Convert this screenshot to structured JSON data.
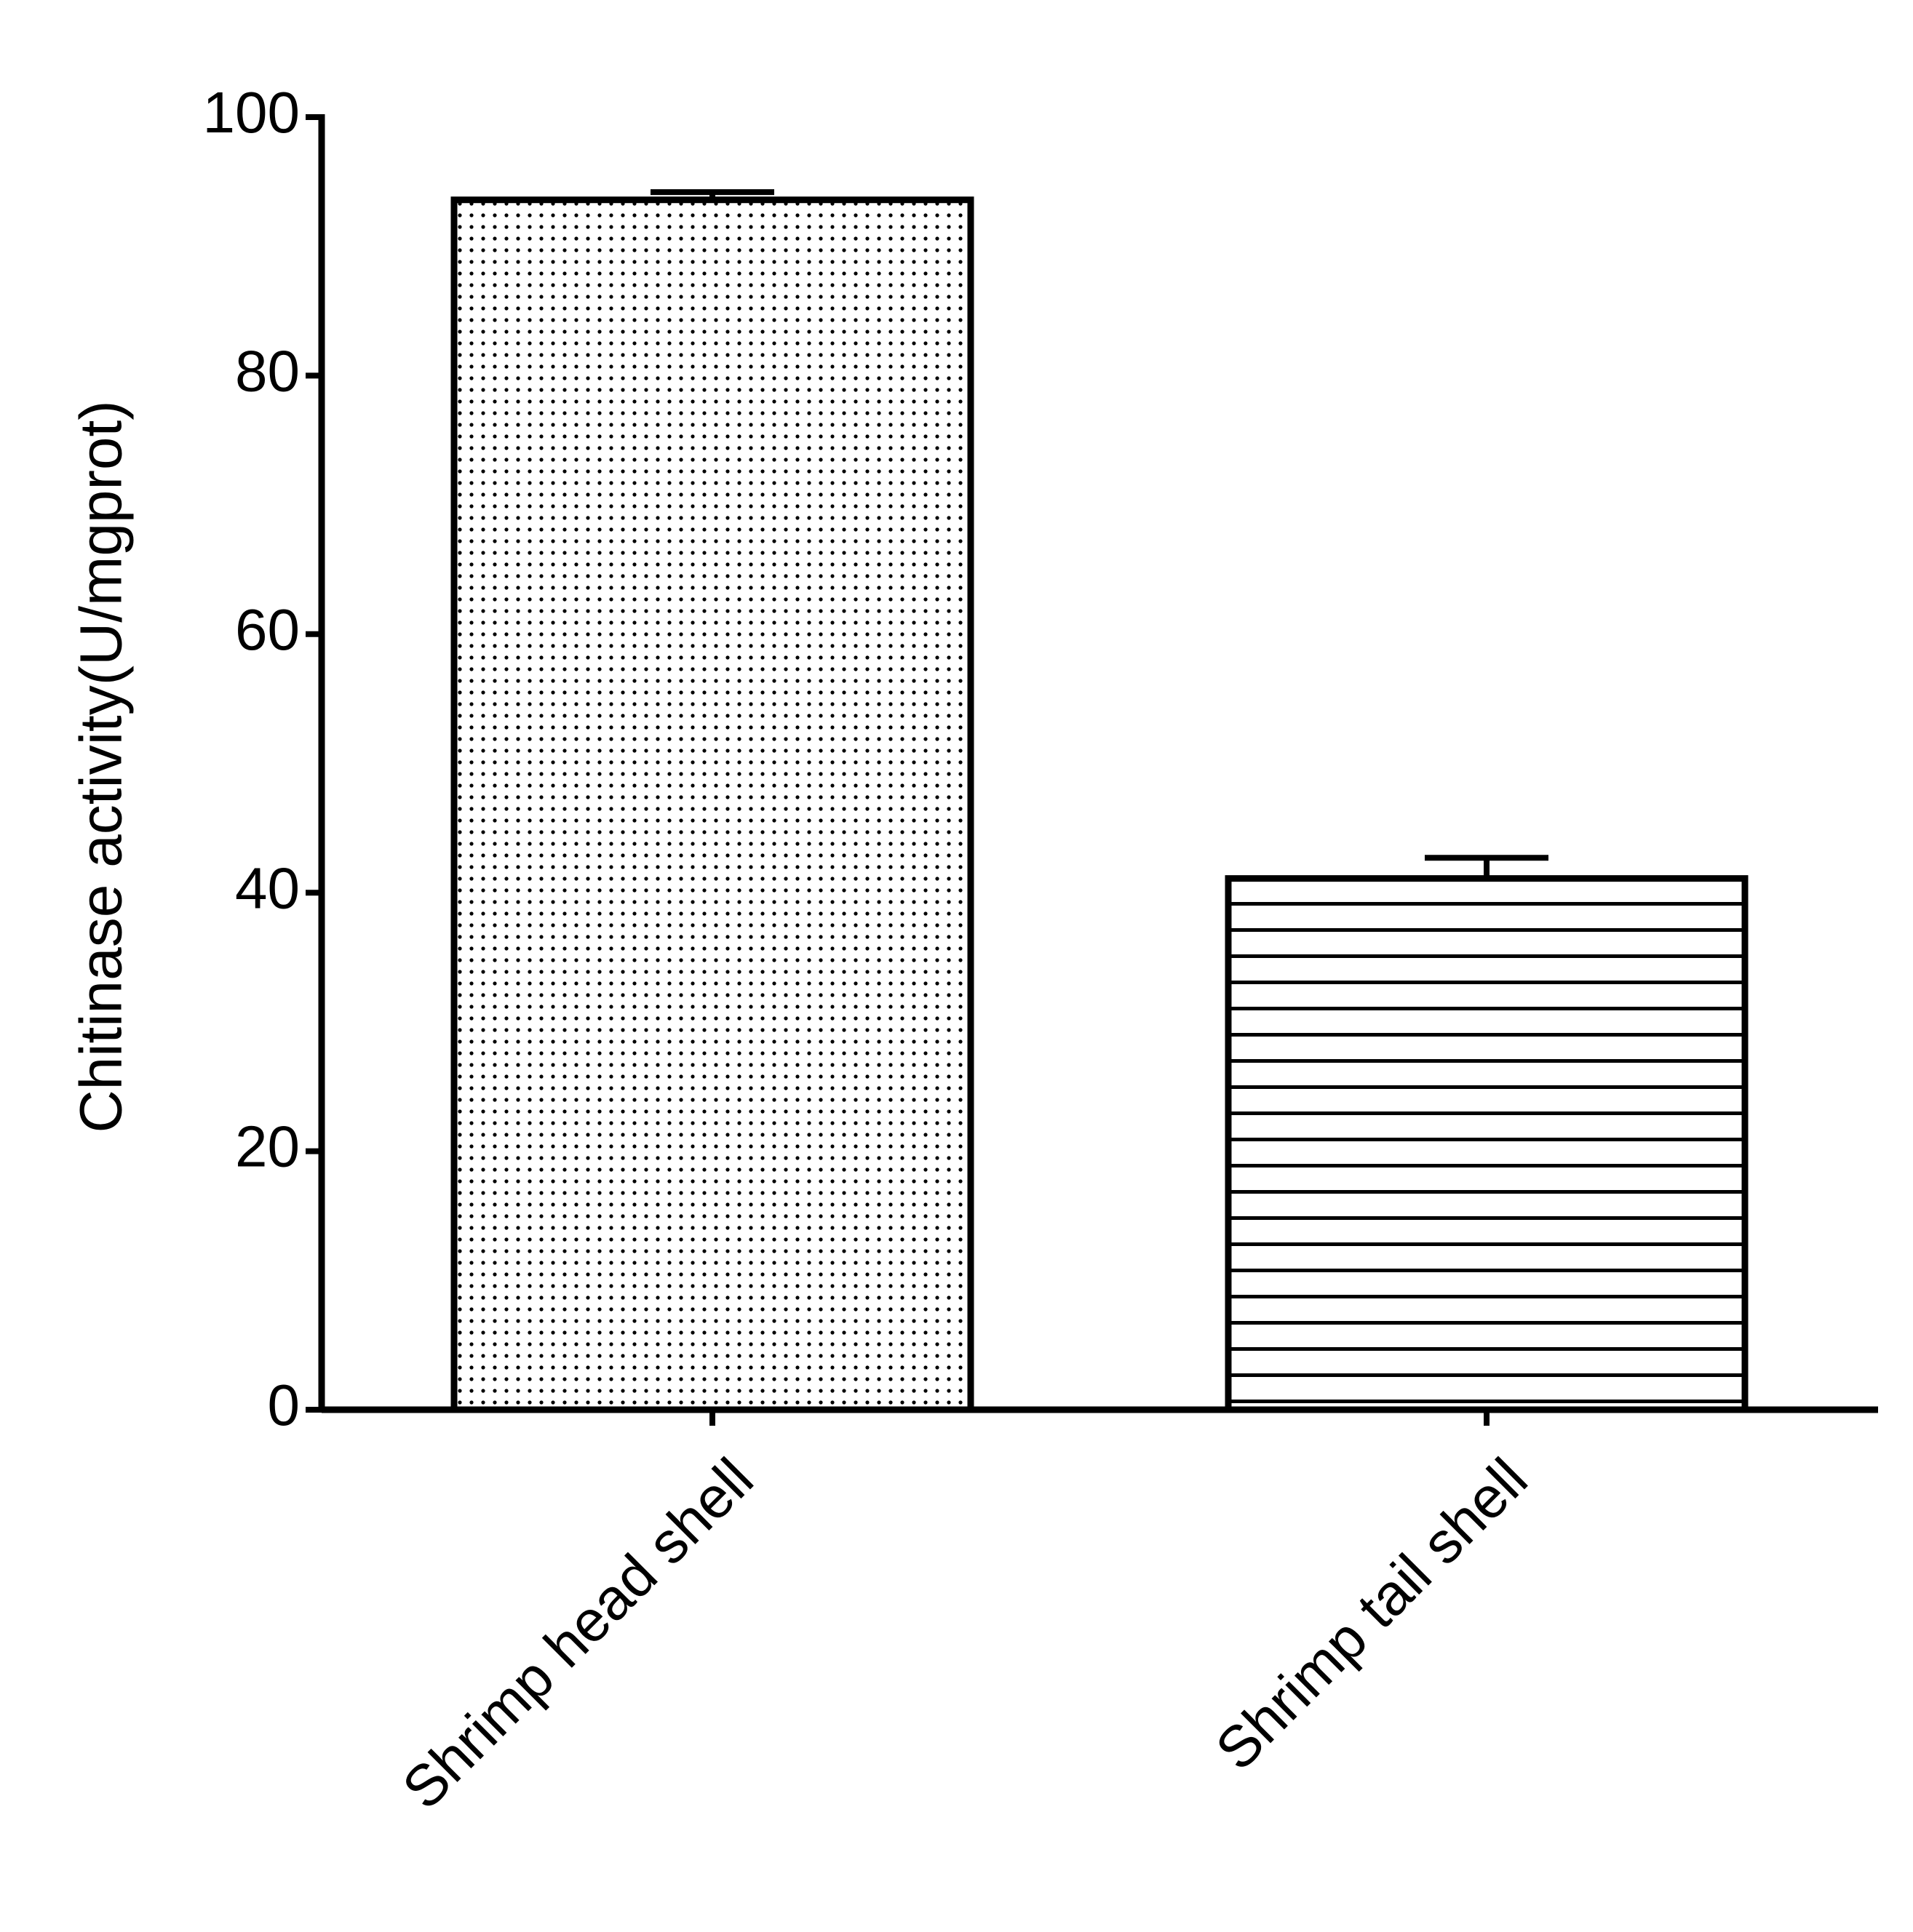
{
  "chart_data": {
    "type": "bar",
    "y_label": "Chitinase activity(U/mgprot)",
    "categories": [
      "Shrimp head shell",
      "Shrimp tail shell"
    ],
    "values": [
      93.6,
      41.1
    ],
    "errors": [
      0.6,
      1.6
    ],
    "patterns": [
      "dots",
      "horizontal-lines"
    ],
    "color": "#000000",
    "ylim": [
      0,
      100
    ],
    "yticks": [
      0,
      20,
      40,
      60,
      80,
      100
    ]
  }
}
